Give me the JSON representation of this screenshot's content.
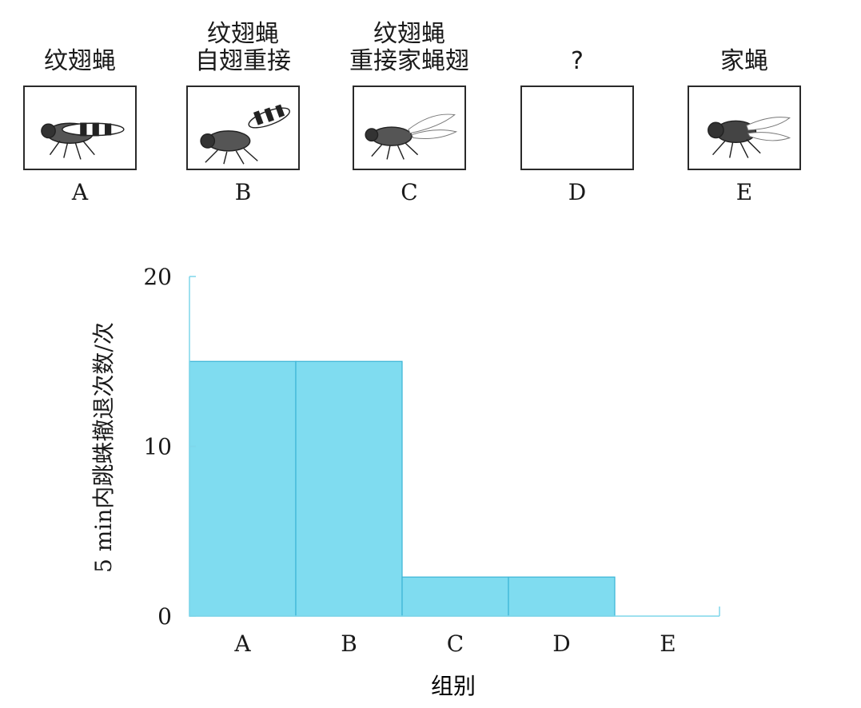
{
  "panels": [
    {
      "letter": "A",
      "title": "纹翅蝇",
      "image": "banded-wing-fly"
    },
    {
      "letter": "B",
      "title": "纹翅蝇\n自翅重接",
      "image": "banded-wing-fly-reattached-wings"
    },
    {
      "letter": "C",
      "title": "纹翅蝇\n重接家蝇翅",
      "image": "fly-with-housefly-wings"
    },
    {
      "letter": "D",
      "title": "?",
      "image": "empty"
    },
    {
      "letter": "E",
      "title": "家蝇",
      "image": "housefly"
    }
  ],
  "chart_data": {
    "type": "bar",
    "categories": [
      "A",
      "B",
      "C",
      "D",
      "E"
    ],
    "values": [
      15,
      15,
      2.3,
      2.3,
      0
    ],
    "xlabel": "组别",
    "ylabel": "5 min内跳蛛撤退次数/次",
    "ylim": [
      0,
      20
    ],
    "yticks": [
      0,
      10,
      20
    ],
    "grid": false,
    "bar_color": "#7fdcf0",
    "bar_edge_color": "#3ab4d6",
    "axis_color": "#7fd6ea"
  }
}
